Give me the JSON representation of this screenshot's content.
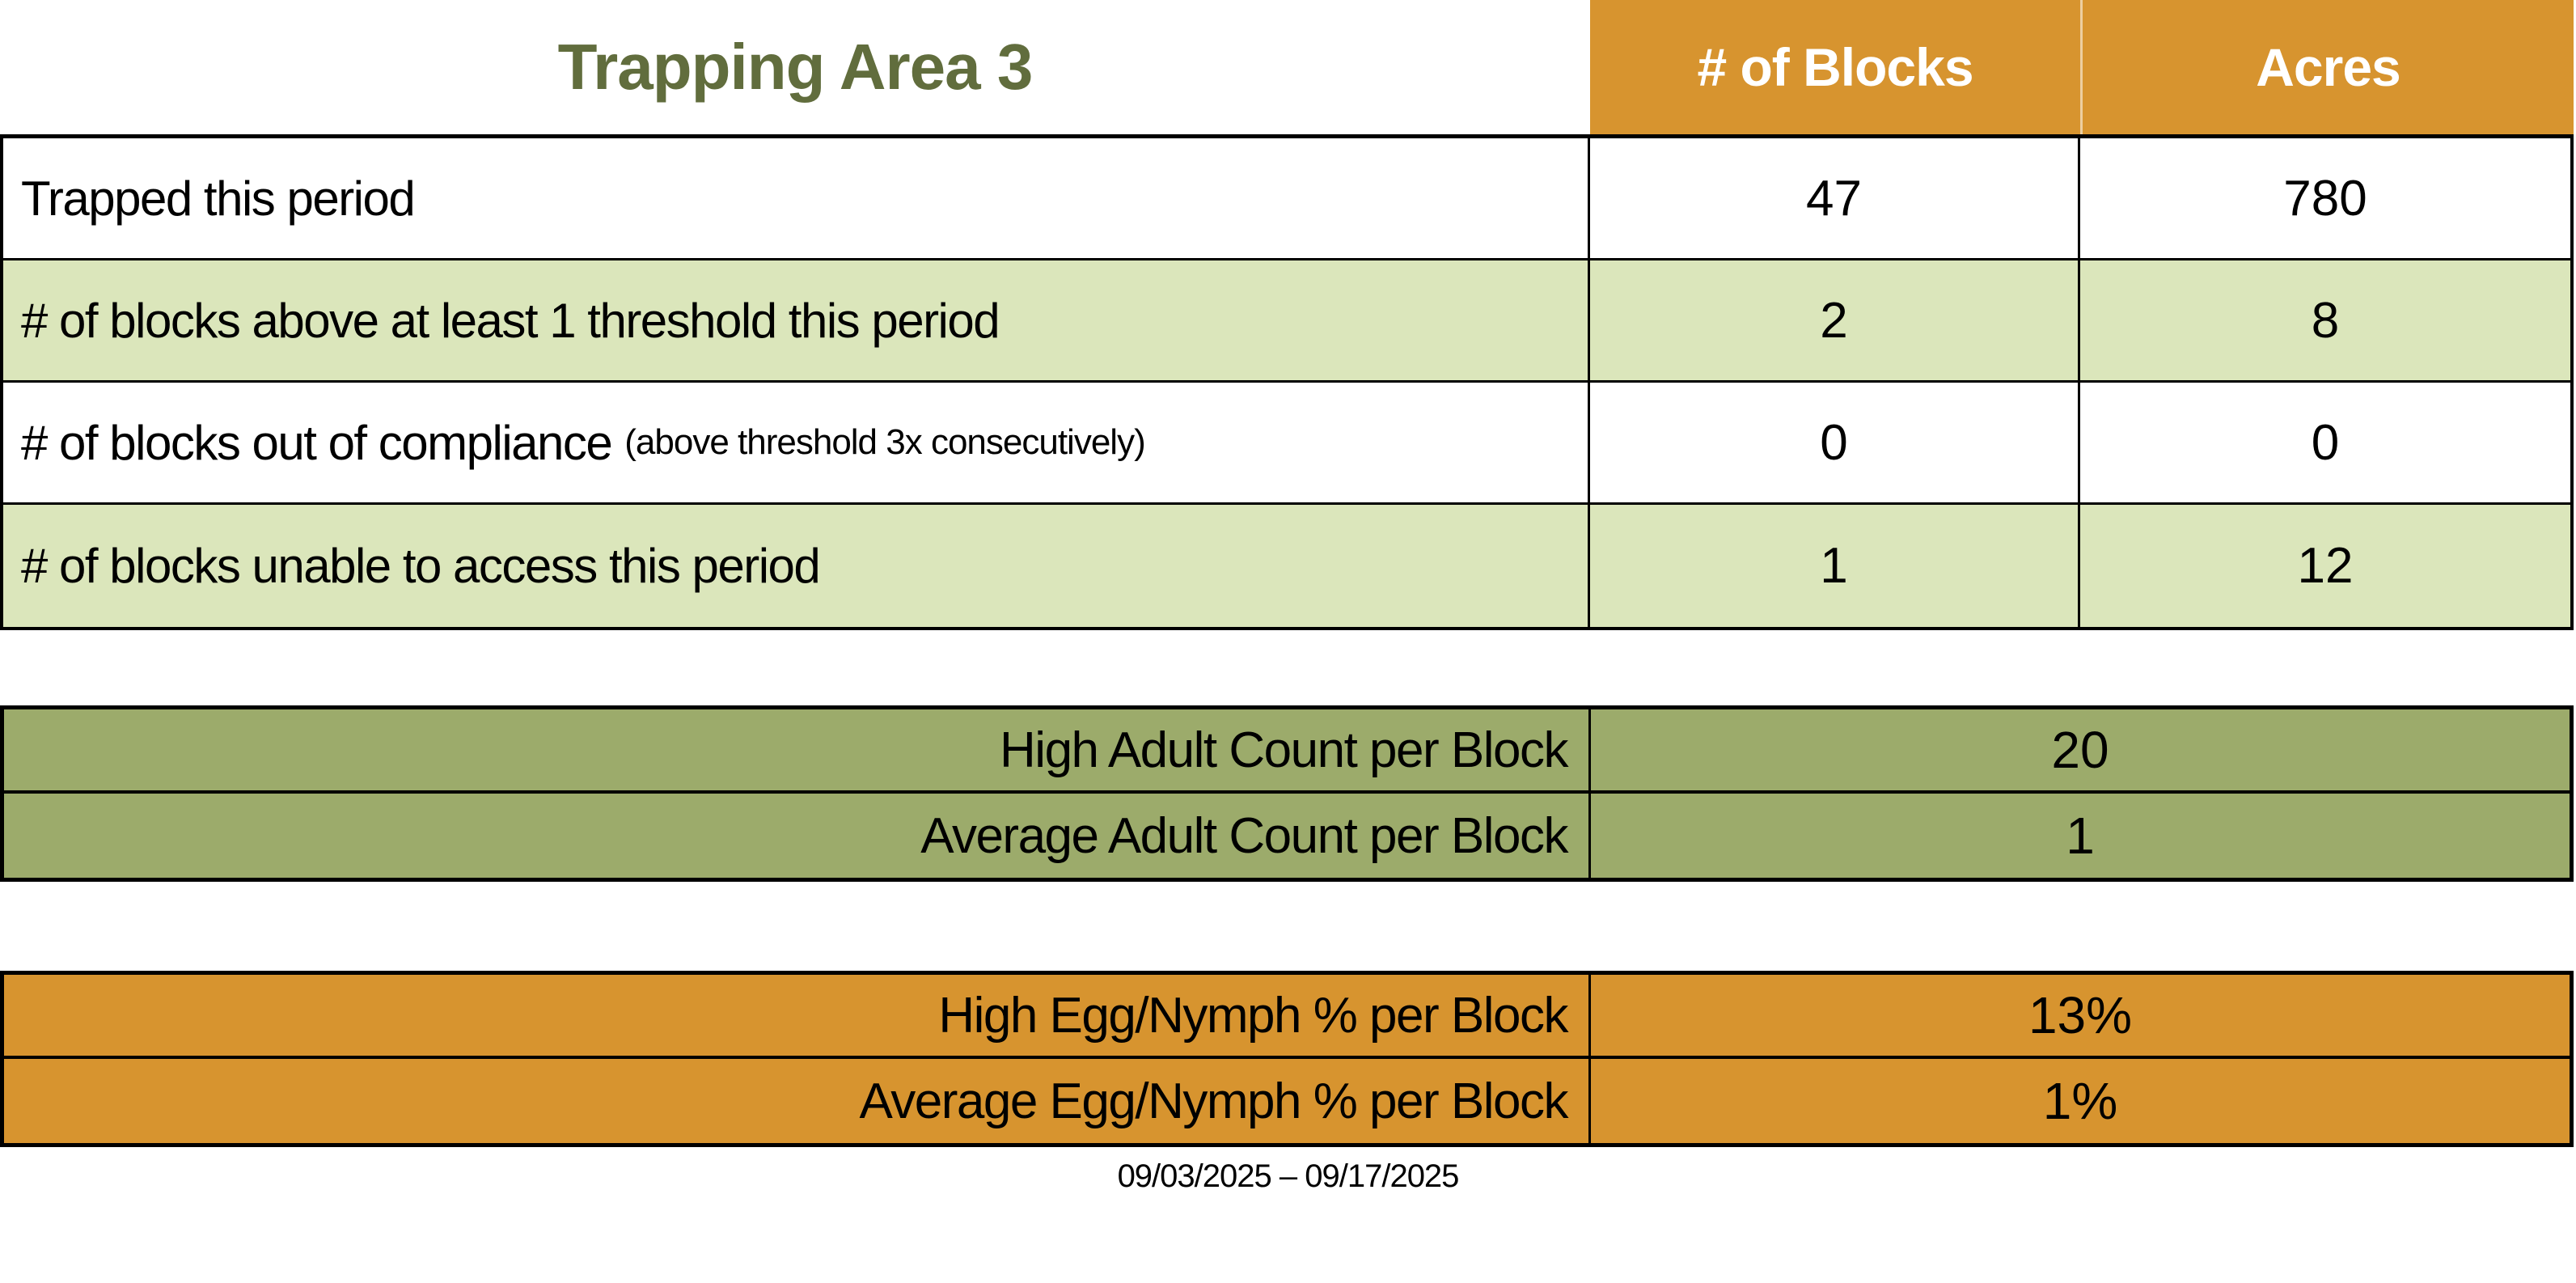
{
  "header": {
    "title": "Trapping Area 3",
    "columns": [
      "# of Blocks",
      "Acres"
    ]
  },
  "main_table": {
    "rows": [
      {
        "label": "Trapped this period",
        "note": "",
        "blocks": "47",
        "acres": "780"
      },
      {
        "label": "# of blocks above at least 1 threshold this period",
        "note": "",
        "blocks": "2",
        "acres": "8"
      },
      {
        "label": "# of blocks out of compliance",
        "note": "(above threshold 3x consecutively)",
        "blocks": "0",
        "acres": "0"
      },
      {
        "label": "# of blocks unable to access this period",
        "note": "",
        "blocks": "1",
        "acres": "12"
      }
    ]
  },
  "adult_counts": {
    "rows": [
      {
        "label": "High Adult Count per Block",
        "value": "20"
      },
      {
        "label": "Average Adult Count per Block",
        "value": "1"
      }
    ]
  },
  "egg_nymph": {
    "rows": [
      {
        "label": "High Egg/Nymph % per Block",
        "value": "13%"
      },
      {
        "label": "Average Egg/Nymph % per Block",
        "value": "1%"
      }
    ]
  },
  "footer": {
    "date_range": "09/03/2025 – 09/17/2025"
  },
  "colors": {
    "header_orange": "#D7942F",
    "row_light_green": "#DBE6BB",
    "olive_green": "#9CAB6B",
    "title_green": "#616D3D"
  }
}
